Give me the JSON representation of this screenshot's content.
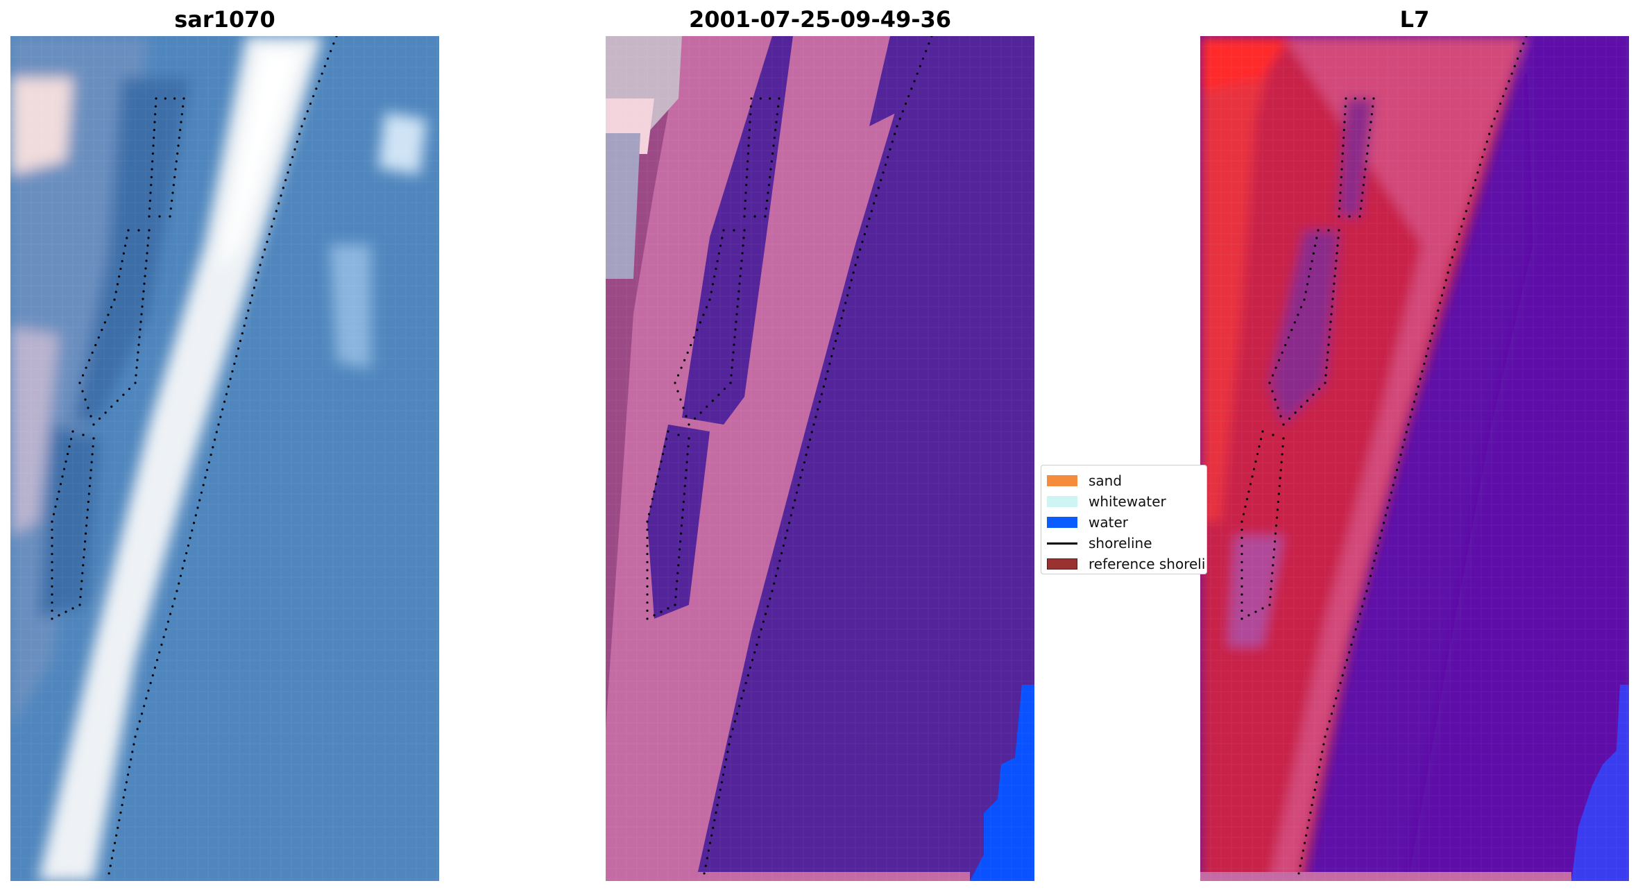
{
  "panels": [
    {
      "id": "rgb",
      "title": "sar1070"
    },
    {
      "id": "classified",
      "title": "2001-07-25-09-49-36"
    },
    {
      "id": "index",
      "title": "L7"
    }
  ],
  "legend": {
    "items": [
      {
        "label": "sand",
        "color": "#f58c3c",
        "kind": "patch"
      },
      {
        "label": "whitewater",
        "color": "#ccf5f3",
        "kind": "patch"
      },
      {
        "label": "water",
        "color": "#0a5cff",
        "kind": "patch"
      },
      {
        "label": "shoreline",
        "color": "#000000",
        "kind": "line"
      },
      {
        "label": "reference shoreline",
        "color": "#9b3232",
        "kind": "patch"
      }
    ]
  },
  "colors": {
    "rgb_water": "#4f86bd",
    "rgb_surf": "#eef2f5",
    "rgb_channel": "#3c6ea8",
    "class_surf": "#c46ba4",
    "class_dark": "#9c4a86",
    "class_water": "#54249a",
    "class_blue": "#0a52ff",
    "index_red": "#c8204a",
    "index_pink": "#d24a7a",
    "index_purple": "#5e10a8",
    "index_blue": "#3a3cf0"
  }
}
